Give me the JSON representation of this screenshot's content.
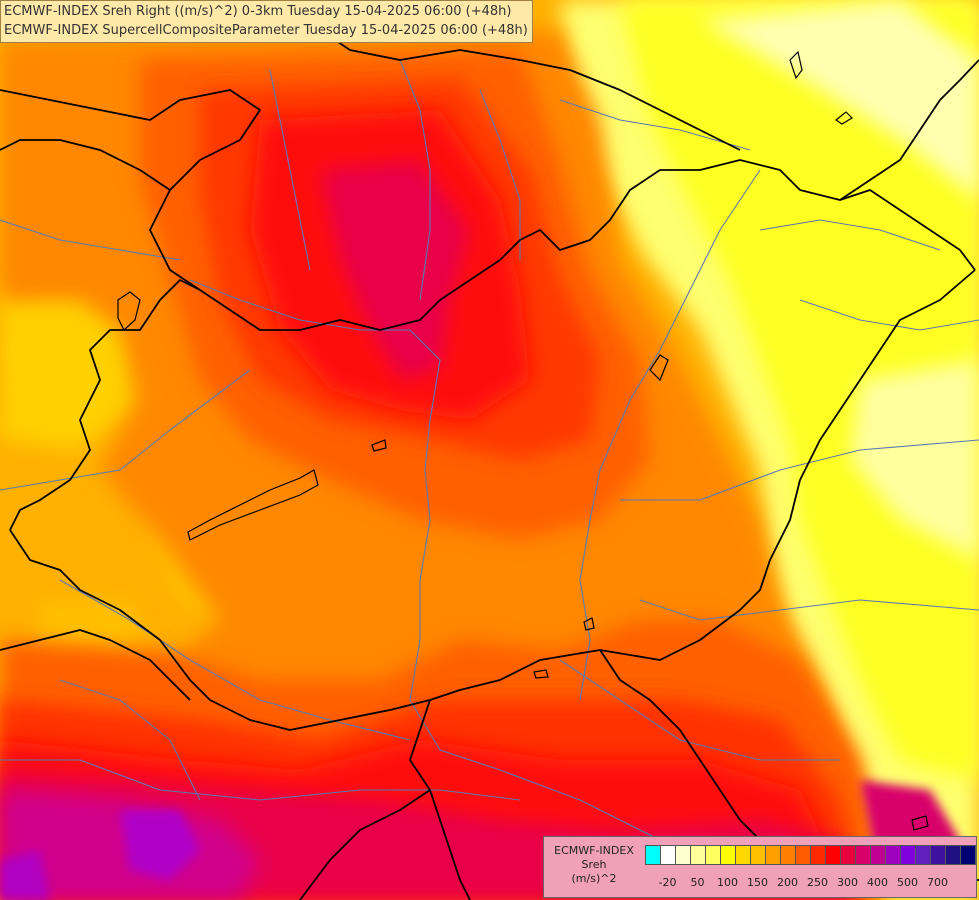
{
  "header": {
    "line1": "ECMWF-INDEX Sreh Right ((m/s)^2) 0-3km Tuesday 15-04-2025 06:00 (+48h)",
    "line2": "ECMWF-INDEX SupercellCompositeParameter Tuesday 15-04-2025 06:00 (+48h)"
  },
  "legend": {
    "title_line1": "ECMWF-INDEX",
    "title_line2": "Sreh",
    "title_line3": "(m/s)^2",
    "tick_labels": [
      "-20",
      "50",
      "100",
      "150",
      "200",
      "250",
      "300",
      "400",
      "500",
      "700"
    ],
    "swatch_colors": [
      "#00ffff",
      "#ffffff",
      "#ffffd0",
      "#ffff99",
      "#ffff60",
      "#ffff00",
      "#ffd800",
      "#ffc000",
      "#ffa000",
      "#ff8000",
      "#ff5a00",
      "#ff2a00",
      "#ff0000",
      "#e8003c",
      "#d8006a",
      "#c00090",
      "#a000c0",
      "#8000e0",
      "#6020c0",
      "#4010a0",
      "#201080",
      "#000070"
    ]
  },
  "map_colors": {
    "base": "#ffb000",
    "orange": "#ff8c00",
    "deep_orange": "#ff6000",
    "red_orange": "#ff3800",
    "red": "#ff1010",
    "crimson": "#e8004a",
    "magenta": "#d0008a",
    "purple": "#b000c8",
    "light_yellow": "#ffff80",
    "yellow": "#ffff00",
    "gold": "#ffe000",
    "border": "#000000",
    "river": "#5a7ab0"
  }
}
